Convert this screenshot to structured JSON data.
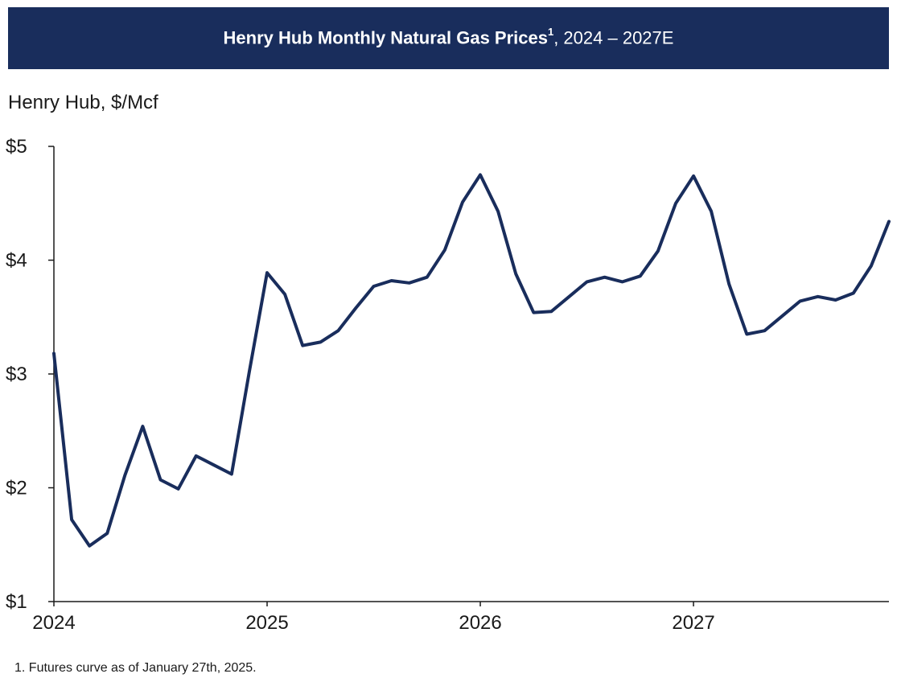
{
  "title": {
    "bold_text": "Henry Hub Monthly Natural Gas Prices",
    "superscript": "1",
    "rest": ", 2024 – 2027E"
  },
  "footnote": "1. Futures curve as of January 27th, 2025.",
  "colors": {
    "banner": "#192d5c",
    "line": "#192d5c",
    "axis": "#1a1a1a"
  },
  "chart_data": {
    "type": "line",
    "title": "Henry Hub Monthly Natural Gas Prices, 2024 – 2027E",
    "ylabel": "Henry Hub, $/Mcf",
    "xlabel": "",
    "ylim": [
      1,
      5
    ],
    "yticks": [
      1,
      2,
      3,
      4,
      5
    ],
    "ytick_labels": [
      "$1",
      "$2",
      "$3",
      "$4",
      "$5"
    ],
    "xticks": [
      "2024",
      "2025",
      "2026",
      "2027"
    ],
    "grid": false,
    "x": [
      "2024-01",
      "2024-02",
      "2024-03",
      "2024-04",
      "2024-05",
      "2024-06",
      "2024-07",
      "2024-08",
      "2024-09",
      "2024-10",
      "2024-11",
      "2024-12",
      "2025-01",
      "2025-02",
      "2025-03",
      "2025-04",
      "2025-05",
      "2025-06",
      "2025-07",
      "2025-08",
      "2025-09",
      "2025-10",
      "2025-11",
      "2025-12",
      "2026-01",
      "2026-02",
      "2026-03",
      "2026-04",
      "2026-05",
      "2026-06",
      "2026-07",
      "2026-08",
      "2026-09",
      "2026-10",
      "2026-11",
      "2026-12",
      "2027-01",
      "2027-02",
      "2027-03",
      "2027-04",
      "2027-05",
      "2027-06",
      "2027-07",
      "2027-08",
      "2027-09",
      "2027-10",
      "2027-11",
      "2027-12"
    ],
    "series": [
      {
        "values": [
          3.18,
          1.72,
          1.49,
          1.6,
          2.11,
          2.54,
          2.07,
          1.99,
          2.28,
          2.2,
          2.12,
          3.02,
          3.89,
          3.7,
          3.25,
          3.28,
          3.38,
          3.58,
          3.77,
          3.82,
          3.8,
          3.85,
          4.09,
          4.51,
          4.75,
          4.43,
          3.88,
          3.54,
          3.55,
          3.68,
          3.81,
          3.85,
          3.81,
          3.86,
          4.08,
          4.5,
          4.74,
          4.43,
          3.79,
          3.35,
          3.38,
          3.51,
          3.64,
          3.68,
          3.65,
          3.71,
          3.95,
          4.34
        ]
      }
    ]
  }
}
